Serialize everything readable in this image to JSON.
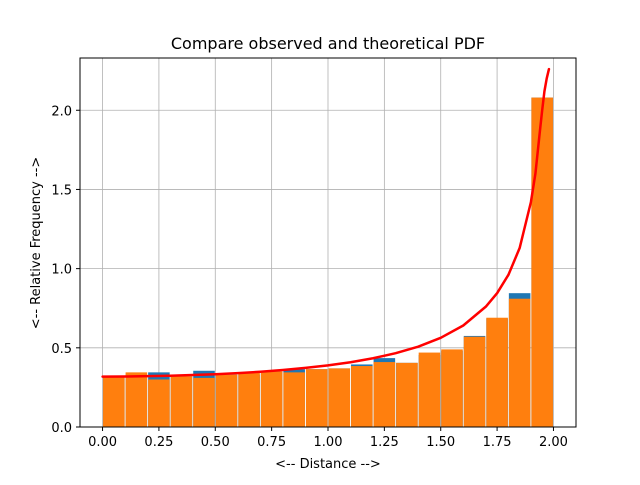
{
  "chart_data": {
    "type": "bar",
    "title": "Compare observed and theoretical PDF",
    "xlabel": "<-- Distance -->",
    "ylabel": "<-- Relative Frequency -->",
    "xlim": [
      -0.1,
      2.1
    ],
    "ylim": [
      0.0,
      2.33
    ],
    "xticks": [
      0.0,
      0.25,
      0.5,
      0.75,
      1.0,
      1.25,
      1.5,
      1.75,
      2.0
    ],
    "xtick_labels": [
      "0.00",
      "0.25",
      "0.50",
      "0.75",
      "1.00",
      "1.25",
      "1.50",
      "1.75",
      "2.00"
    ],
    "yticks": [
      0.0,
      0.5,
      1.0,
      1.5,
      2.0
    ],
    "ytick_labels": [
      "0.0",
      "0.5",
      "1.0",
      "1.5",
      "2.0"
    ],
    "grid": true,
    "bin_edges": [
      0.0,
      0.1,
      0.2,
      0.3,
      0.4,
      0.5,
      0.6,
      0.7,
      0.8,
      0.9,
      1.0,
      1.1,
      1.2,
      1.3,
      1.4,
      1.5,
      1.6,
      1.7,
      1.8,
      1.9,
      2.0
    ],
    "series": [
      {
        "values": [
          0.32,
          0.33,
          0.345,
          0.32,
          0.355,
          0.33,
          0.33,
          0.35,
          0.365,
          0.365,
          0.37,
          0.395,
          0.435,
          0.405,
          0.455,
          0.48,
          0.575,
          0.685,
          0.845,
          2.08
        ],
        "color": "#1f77b4"
      },
      {
        "values": [
          0.32,
          0.345,
          0.3,
          0.32,
          0.31,
          0.33,
          0.345,
          0.35,
          0.345,
          0.365,
          0.37,
          0.385,
          0.41,
          0.405,
          0.47,
          0.49,
          0.57,
          0.69,
          0.81,
          2.08
        ],
        "color": "#ff7f0e"
      }
    ],
    "curve": {
      "color": "#ff0000",
      "x": [
        0.0,
        0.1,
        0.2,
        0.3,
        0.4,
        0.5,
        0.6,
        0.7,
        0.8,
        0.9,
        1.0,
        1.1,
        1.2,
        1.3,
        1.4,
        1.5,
        1.6,
        1.7,
        1.75,
        1.8,
        1.85,
        1.9,
        1.92,
        1.94,
        1.95,
        1.96,
        1.97,
        1.98
      ],
      "y": [
        0.318,
        0.319,
        0.321,
        0.324,
        0.328,
        0.333,
        0.34,
        0.349,
        0.36,
        0.373,
        0.389,
        0.409,
        0.434,
        0.466,
        0.507,
        0.563,
        0.641,
        0.76,
        0.845,
        0.96,
        1.13,
        1.42,
        1.6,
        1.87,
        2.0,
        2.12,
        2.2,
        2.26
      ]
    }
  }
}
